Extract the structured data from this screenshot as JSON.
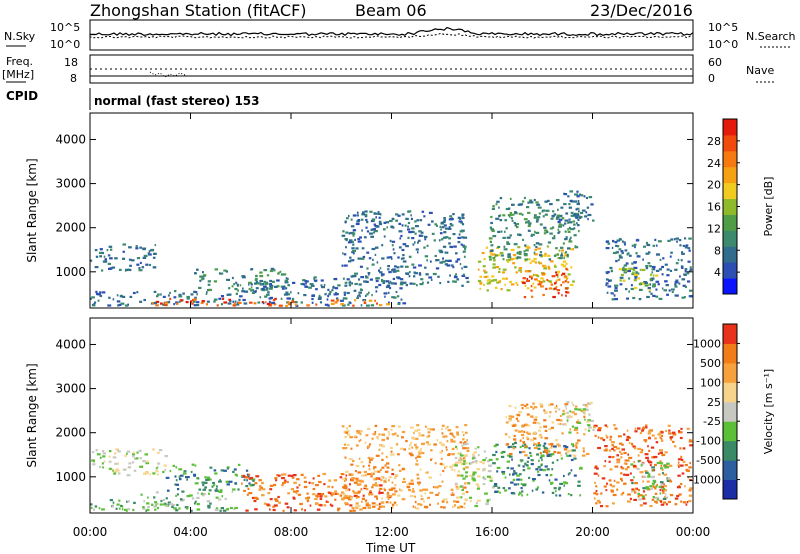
{
  "header": {
    "station": "Zhongshan Station (fitACF)",
    "beam": "Beam 06",
    "date": "23/Dec/2016"
  },
  "strip": {
    "nsky_label": "N.Sky",
    "nsearch_label": "N.Search",
    "freq_label_top": "Freq.",
    "freq_label_unit": "[MHz]",
    "cpid_label": "CPID",
    "nave_label": "Nave",
    "noise_ticks": [
      "10^5",
      "10^0"
    ],
    "freq_ticks": [
      "18",
      "8"
    ],
    "nave_ticks": [
      "60",
      "0"
    ],
    "cpid_text": "normal (fast stereo) 153"
  },
  "chart_data": [
    {
      "type": "heatmap",
      "name": "power",
      "ylabel": "Slant Range [km]",
      "xlabel": "",
      "x_ticks": [
        "00:00",
        "04:00",
        "08:00",
        "12:00",
        "16:00",
        "20:00",
        "00:00"
      ],
      "y_ticks": [
        1000,
        2000,
        3000,
        4000
      ],
      "ylim": [
        180,
        4600
      ],
      "xlim": [
        0,
        24
      ],
      "colorbar": {
        "label": "Power [dB]",
        "ticks": [
          "28",
          "24",
          "20",
          "16",
          "12",
          "8",
          "4"
        ],
        "colors": [
          "#0a14ff",
          "#2c4fb3",
          "#2f6c8e",
          "#3b8a6d",
          "#4f9e47",
          "#8fbb2a",
          "#f2cb20",
          "#f6a114",
          "#f77a10",
          "#f04b0c",
          "#e41a0a"
        ]
      },
      "regions": [
        {
          "t0": 0.0,
          "t1": 2.6,
          "r0": 1050,
          "r1": 1650,
          "level": 2
        },
        {
          "t0": 0.0,
          "t1": 6.2,
          "r0": 250,
          "r1": 600,
          "level": 2
        },
        {
          "t0": 2.0,
          "t1": 7.5,
          "r0": 250,
          "r1": 420,
          "level": 9
        },
        {
          "t0": 4.0,
          "t1": 7.8,
          "r0": 600,
          "r1": 1100,
          "level": 3
        },
        {
          "t0": 6.0,
          "t1": 12.5,
          "r0": 250,
          "r1": 900,
          "level": 2
        },
        {
          "t0": 7.5,
          "t1": 12.0,
          "r0": 250,
          "r1": 380,
          "level": 8
        },
        {
          "t0": 10.0,
          "t1": 15.0,
          "r0": 700,
          "r1": 2400,
          "level": 2
        },
        {
          "t0": 15.4,
          "t1": 19.2,
          "r0": 600,
          "r1": 1600,
          "level": 6
        },
        {
          "t0": 17.2,
          "t1": 19.0,
          "r0": 450,
          "r1": 1100,
          "level": 9
        },
        {
          "t0": 15.8,
          "t1": 19.5,
          "r0": 1300,
          "r1": 2700,
          "level": 3
        },
        {
          "t0": 18.6,
          "t1": 20.0,
          "r0": 2100,
          "r1": 2850,
          "level": 2
        },
        {
          "t0": 20.5,
          "t1": 23.9,
          "r0": 400,
          "r1": 1800,
          "level": 2
        },
        {
          "t0": 21.0,
          "t1": 22.6,
          "r0": 600,
          "r1": 1100,
          "level": 5
        }
      ]
    },
    {
      "type": "heatmap",
      "name": "velocity",
      "ylabel": "Slant Range [km]",
      "xlabel": "Time UT",
      "x_ticks": [
        "00:00",
        "04:00",
        "08:00",
        "12:00",
        "16:00",
        "20:00",
        "00:00"
      ],
      "y_ticks": [
        1000,
        2000,
        3000,
        4000
      ],
      "ylim": [
        180,
        4600
      ],
      "xlim": [
        0,
        24
      ],
      "colorbar": {
        "label": "Velocity [m s⁻¹]",
        "ticks": [
          "1000",
          "500",
          "100",
          "25",
          "-25",
          "-100",
          "-500",
          "-1000"
        ],
        "colors": [
          "#1b2ea6",
          "#2d5ea0",
          "#3a8a66",
          "#5cbf38",
          "#c8c8c2",
          "#f7d48a",
          "#f6a13c",
          "#f27c18",
          "#e8321a"
        ]
      },
      "regions": [
        {
          "t0": 0.0,
          "t1": 3.0,
          "r0": 1050,
          "r1": 1650,
          "level": 4
        },
        {
          "t0": 0.0,
          "t1": 3.6,
          "r0": 250,
          "r1": 500,
          "level": 3
        },
        {
          "t0": 2.0,
          "t1": 5.8,
          "r0": 250,
          "r1": 700,
          "level": 3
        },
        {
          "t0": 3.0,
          "t1": 6.5,
          "r0": 700,
          "r1": 1300,
          "level": 2
        },
        {
          "t0": 6.0,
          "t1": 12.0,
          "r0": 250,
          "r1": 1100,
          "level": 7
        },
        {
          "t0": 10.0,
          "t1": 15.0,
          "r0": 300,
          "r1": 2200,
          "level": 6
        },
        {
          "t0": 14.5,
          "t1": 16.0,
          "r0": 300,
          "r1": 1800,
          "level": 4
        },
        {
          "t0": 16.0,
          "t1": 19.5,
          "r0": 600,
          "r1": 1800,
          "level": 2
        },
        {
          "t0": 16.5,
          "t1": 19.8,
          "r0": 1500,
          "r1": 2700,
          "level": 6
        },
        {
          "t0": 18.6,
          "t1": 20.0,
          "r0": 2000,
          "r1": 2750,
          "level": 4
        },
        {
          "t0": 20.0,
          "t1": 23.9,
          "r0": 350,
          "r1": 2200,
          "level": 7
        },
        {
          "t0": 21.5,
          "t1": 23.0,
          "r0": 500,
          "r1": 1400,
          "level": 3
        }
      ]
    }
  ]
}
